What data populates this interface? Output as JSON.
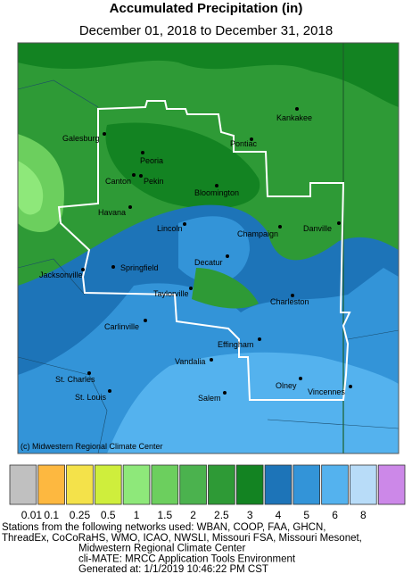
{
  "header": {
    "title": "Accumulated Precipitation (in)",
    "subtitle": "December 01, 2018 to December 31, 2018"
  },
  "map": {
    "credit": "(c) Midwestern Regional Climate Center",
    "cities": [
      {
        "name": "Galesburg"
      },
      {
        "name": "Kankakee"
      },
      {
        "name": "Pontiac"
      },
      {
        "name": "Peoria"
      },
      {
        "name": "Canton"
      },
      {
        "name": "Pekin"
      },
      {
        "name": "Bloomington"
      },
      {
        "name": "Havana"
      },
      {
        "name": "Lincoln"
      },
      {
        "name": "Champaign"
      },
      {
        "name": "Danville"
      },
      {
        "name": "Decatur"
      },
      {
        "name": "Jacksonville"
      },
      {
        "name": "Springfield"
      },
      {
        "name": "Taylorville"
      },
      {
        "name": "Charleston"
      },
      {
        "name": "Carlinville"
      },
      {
        "name": "Effingham"
      },
      {
        "name": "Vandalia"
      },
      {
        "name": "St. Charles"
      },
      {
        "name": "Olney"
      },
      {
        "name": "Vincennes"
      },
      {
        "name": "St. Louis"
      },
      {
        "name": "Salem"
      }
    ]
  },
  "legend": [
    {
      "label": "0.01",
      "color": "#c0c0c0"
    },
    {
      "label": "0.1",
      "color": "#fdb840"
    },
    {
      "label": "0.25",
      "color": "#f4e24a"
    },
    {
      "label": "0.5",
      "color": "#cfee3c"
    },
    {
      "label": "1",
      "color": "#8ee87a"
    },
    {
      "label": "1.5",
      "color": "#6ccf5e"
    },
    {
      "label": "2",
      "color": "#4bb24e"
    },
    {
      "label": "2.5",
      "color": "#2e9a36"
    },
    {
      "label": "3",
      "color": "#138322"
    },
    {
      "label": "4",
      "color": "#1d74b8"
    },
    {
      "label": "5",
      "color": "#3394d8"
    },
    {
      "label": "6",
      "color": "#54b2ee"
    },
    {
      "label": "8",
      "color": "#b8dcf8"
    },
    {
      "label": "",
      "color": "#cc88e8"
    }
  ],
  "footer": [
    "Stations from the following networks used: WBAN, COOP, FAA, GHCN,",
    "ThreadEx, CoCoRaHS, WMO, ICAO, NWSLI, Missouri FSA, Missouri Mesonet,",
    "Midwestern Regional Climate Center",
    "cli-MATE: MRCC Application Tools Environment",
    "Generated at: 1/1/2019 10:46:22 PM CST"
  ]
}
